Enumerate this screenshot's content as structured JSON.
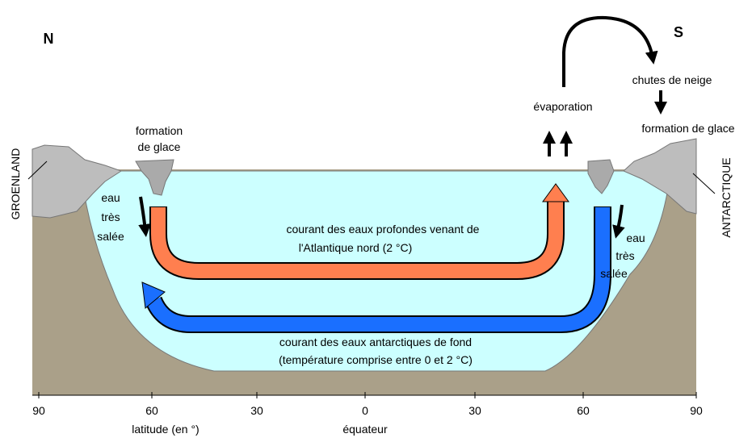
{
  "poles": {
    "north": "N",
    "south": "S"
  },
  "regions": {
    "left": "GROENLAND",
    "right": "ANTARCTIQUE"
  },
  "processes": {
    "snow": "chutes de neige",
    "ice_right": "formation de glace",
    "evaporation": "évaporation",
    "ice_left": [
      "formation",
      "de glace"
    ]
  },
  "salty_left": [
    "eau",
    "très",
    "salée"
  ],
  "salty_right": [
    "eau",
    "très",
    "salée"
  ],
  "currents": {
    "deep_north": [
      "courant des eaux profondes venant de",
      "l'Atlantique nord (2 °C)"
    ],
    "antarctic_bottom": [
      "courant des eaux antarctiques de fond",
      "(température comprise entre 0 et 2 °C)"
    ]
  },
  "axis": {
    "ticks": [
      "90",
      "60",
      "30",
      "0",
      "30",
      "60",
      "90"
    ],
    "title": "latitude (en °)",
    "equator": "équateur"
  }
}
